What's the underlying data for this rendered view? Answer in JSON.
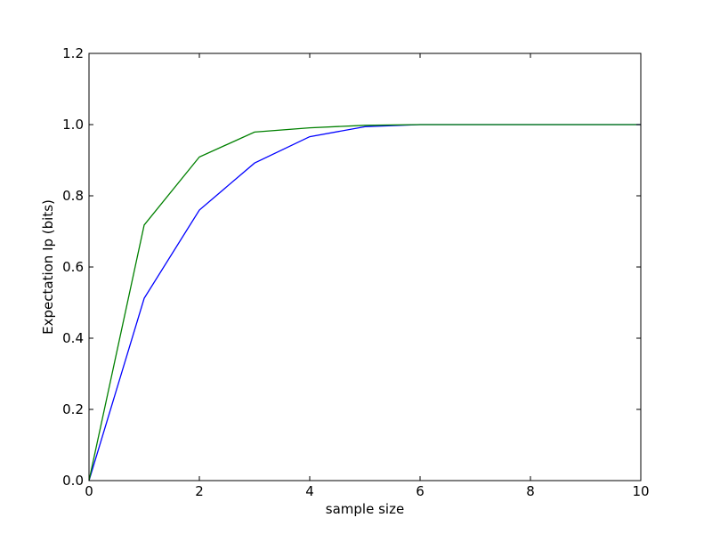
{
  "chart_data": {
    "type": "line",
    "title": "",
    "xlabel": "sample size",
    "ylabel": "Expectation Ip (bits)",
    "xlim": [
      0,
      10
    ],
    "ylim": [
      0,
      1.2
    ],
    "xticks": [
      0,
      2,
      4,
      6,
      8,
      10
    ],
    "yticks": [
      0.0,
      0.2,
      0.4,
      0.6,
      0.8,
      1.0,
      1.2
    ],
    "xtick_labels": [
      "0",
      "2",
      "4",
      "6",
      "8",
      "10"
    ],
    "ytick_labels": [
      "0.0",
      "0.2",
      "0.4",
      "0.6",
      "0.8",
      "1.0",
      "1.2"
    ],
    "grid": false,
    "legend": "none",
    "series": [
      {
        "color": "#0000ff",
        "x": [
          0,
          1,
          2,
          3,
          4,
          5,
          6,
          7,
          8,
          9,
          10
        ],
        "y": [
          0.0,
          0.512,
          0.76,
          0.892,
          0.966,
          0.994,
          1.0,
          1.0,
          1.0,
          1.0,
          1.0
        ]
      },
      {
        "color": "#008000",
        "x": [
          0,
          1,
          2,
          3,
          4,
          5,
          6,
          7,
          8,
          9,
          10
        ],
        "y": [
          0.0,
          0.718,
          0.909,
          0.979,
          0.991,
          0.998,
          1.0,
          1.0,
          1.0,
          1.0,
          1.0
        ]
      }
    ]
  }
}
